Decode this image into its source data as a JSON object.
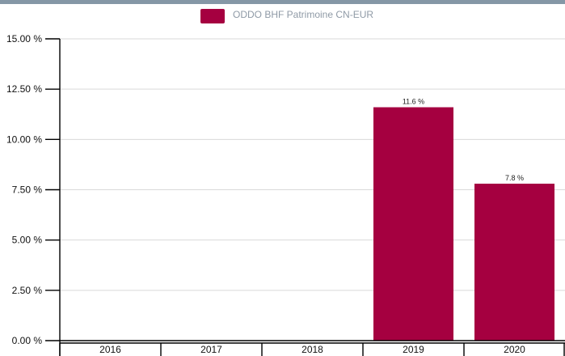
{
  "colors": {
    "top_bar": "#8597a6",
    "series": "#a50040",
    "grid": "#d9d9d9",
    "axis": "#000000",
    "legend_text": "#8f9aa6"
  },
  "chart_data": {
    "type": "bar",
    "title": "",
    "xlabel": "",
    "ylabel": "",
    "categories": [
      "2016",
      "2017",
      "2018",
      "2019",
      "2020"
    ],
    "series": [
      {
        "name": "ODDO BHF Patrimoine CN-EUR",
        "values": [
          null,
          null,
          null,
          11.6,
          7.8
        ]
      }
    ],
    "data_labels": [
      "",
      "",
      "",
      "11.6 %",
      "7.8 %"
    ],
    "ylim": [
      0,
      15
    ],
    "yticks": [
      0,
      2.5,
      5,
      7.5,
      10,
      12.5,
      15
    ],
    "ytick_labels": [
      "0.00 %",
      "2.50 %",
      "5.00 %",
      "7.50 %",
      "10.00 %",
      "12.50 %",
      "15.00 %"
    ],
    "grid": true,
    "legend_position": "top-center"
  }
}
